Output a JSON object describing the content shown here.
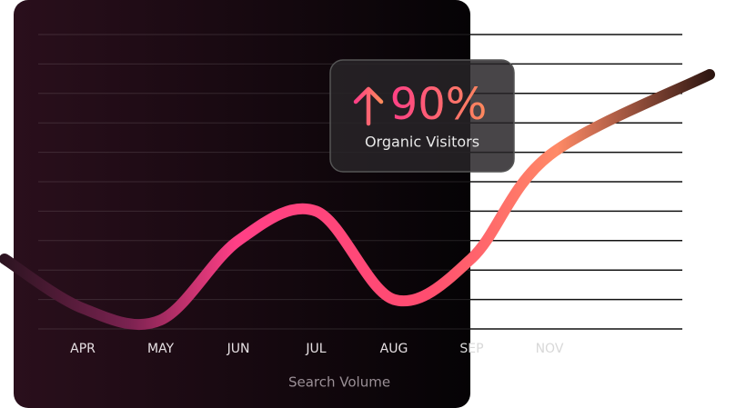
{
  "chart_data": {
    "type": "line",
    "categories": [
      "APR",
      "MAY",
      "JUN",
      "JUL",
      "AUG",
      "SEP",
      "NOV"
    ],
    "values": [
      7,
      3,
      30,
      40,
      10,
      24,
      59
    ],
    "ylim": [
      0,
      100
    ],
    "xlabel": "Search Volume",
    "annotation": {
      "value": "90%",
      "label": "Organic Visitors"
    }
  }
}
